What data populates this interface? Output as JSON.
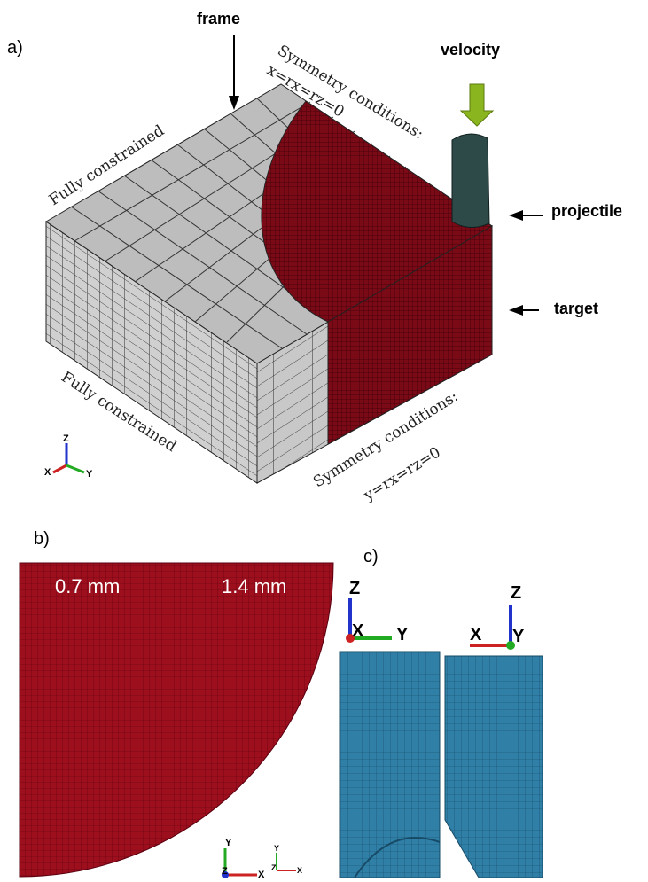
{
  "panel_a": {
    "label": "a)",
    "callouts": {
      "frame": "frame",
      "velocity": "velocity",
      "projectile": "projectile",
      "target": "target"
    },
    "boundary_labels": [
      {
        "lines": [
          "Symmetry conditions:",
          "x=rx=rz=0"
        ]
      },
      {
        "lines": [
          "Fully constrained"
        ]
      },
      {
        "lines": [
          "Fully constrained"
        ]
      },
      {
        "lines": [
          "Symmetry conditions:",
          "y=rx=rz=0"
        ]
      }
    ],
    "triad": [
      "Z",
      "X",
      "Y"
    ]
  },
  "panel_b": {
    "label": "b)",
    "dimensions": [
      "0.7 mm",
      "1.4 mm"
    ],
    "triads": [
      [
        "Y",
        "Z",
        "X"
      ],
      [
        "Y",
        "Z",
        "X"
      ]
    ]
  },
  "panel_c": {
    "label": "c)",
    "triads": [
      [
        "Z",
        "X",
        "Y"
      ],
      [
        "Z",
        "X",
        "Y"
      ]
    ]
  }
}
